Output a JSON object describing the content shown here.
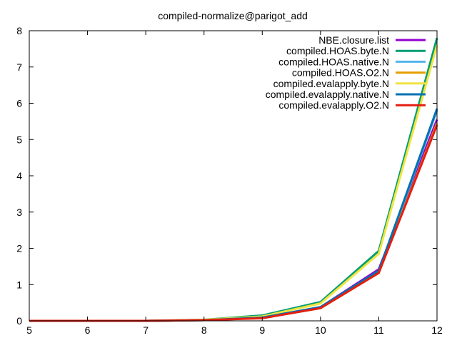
{
  "chart_data": {
    "type": "line",
    "title": "compiled-normalize@parigot_add",
    "xlabel": "",
    "ylabel": "",
    "xlim": [
      5,
      12
    ],
    "ylim": [
      0,
      8
    ],
    "xticks": [
      5,
      6,
      7,
      8,
      9,
      10,
      11,
      12
    ],
    "yticks": [
      0,
      1,
      2,
      3,
      4,
      5,
      6,
      7,
      8
    ],
    "grid": false,
    "legend_position": "top-right",
    "x": [
      5,
      6,
      7,
      8,
      9,
      10,
      11,
      12
    ],
    "series": [
      {
        "name": "NBE.closure.list",
        "color": "#9400d3",
        "values": [
          0.0,
          0.0,
          0.0,
          0.02,
          0.08,
          0.38,
          1.42,
          5.55
        ]
      },
      {
        "name": "compiled.HOAS.byte.N",
        "color": "#009e73",
        "values": [
          0.0,
          0.0,
          0.0,
          0.03,
          0.15,
          0.52,
          1.93,
          7.8
        ]
      },
      {
        "name": "compiled.HOAS.native.N",
        "color": "#56b4e9",
        "values": [
          0.0,
          0.0,
          0.0,
          0.02,
          0.08,
          0.36,
          1.35,
          5.8
        ]
      },
      {
        "name": "compiled.HOAS.O2.N",
        "color": "#e69f00",
        "values": [
          0.0,
          0.0,
          0.0,
          0.02,
          0.08,
          0.35,
          1.32,
          5.45
        ]
      },
      {
        "name": "compiled.evalapply.byte.N",
        "color": "#f0e442",
        "values": [
          0.0,
          0.0,
          0.0,
          0.03,
          0.12,
          0.48,
          1.85,
          7.6
        ]
      },
      {
        "name": "compiled.evalapply.native.N",
        "color": "#0072b2",
        "values": [
          0.0,
          0.0,
          0.0,
          0.02,
          0.09,
          0.38,
          1.38,
          5.85
        ]
      },
      {
        "name": "compiled.evalapply.O2.N",
        "color": "#e51e10",
        "values": [
          0.0,
          0.0,
          0.0,
          0.02,
          0.07,
          0.35,
          1.32,
          5.4
        ]
      }
    ]
  }
}
